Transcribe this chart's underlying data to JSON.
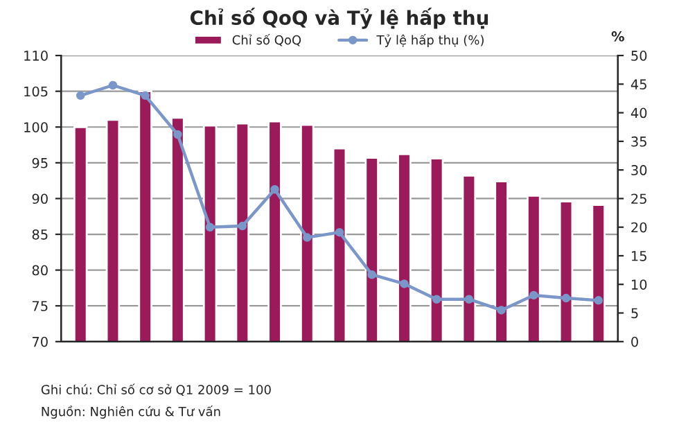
{
  "chart_data": {
    "type": "bar",
    "title": "Chỉ số QoQ và Tỷ lệ hấp thụ",
    "categories": [
      null,
      null,
      null,
      null,
      null,
      null,
      null,
      null,
      null,
      null,
      null,
      null,
      null,
      null,
      null,
      null,
      null
    ],
    "series": [
      {
        "name": "Chỉ số QoQ",
        "color": "#9b1b5a",
        "values": [
          100,
          101,
          105,
          101.3,
          100.2,
          100.5,
          100.8,
          100.3,
          97,
          95.7,
          96.2,
          95.6,
          93.2,
          92.4,
          90.4,
          89.6,
          89.1
        ]
      },
      {
        "name": "Tỷ lệ hấp thụ (%)",
        "type": "line",
        "axis": "y2",
        "color": "#7b96c8",
        "marker": "circle",
        "values": [
          43,
          44.8,
          43,
          36.2,
          20,
          20.2,
          26.6,
          18.2,
          19.1,
          11.7,
          10.1,
          7.4,
          7.4,
          5.5,
          8.1,
          7.6,
          7.2
        ]
      }
    ],
    "ylim": [
      70,
      110
    ],
    "yticks": [
      70,
      75,
      80,
      85,
      90,
      95,
      100,
      105,
      110
    ],
    "y2lim": [
      0,
      50
    ],
    "y2ticks": [
      0,
      5,
      10,
      15,
      20,
      25,
      30,
      35,
      40,
      45,
      50
    ],
    "y2label": "%",
    "grid": "y",
    "legend": "top",
    "annotations": [
      "Ghi chú: Chỉ số cơ sở Q1 2009 = 100",
      "Nguồn: Nghiên cứu & Tư vấn"
    ]
  }
}
